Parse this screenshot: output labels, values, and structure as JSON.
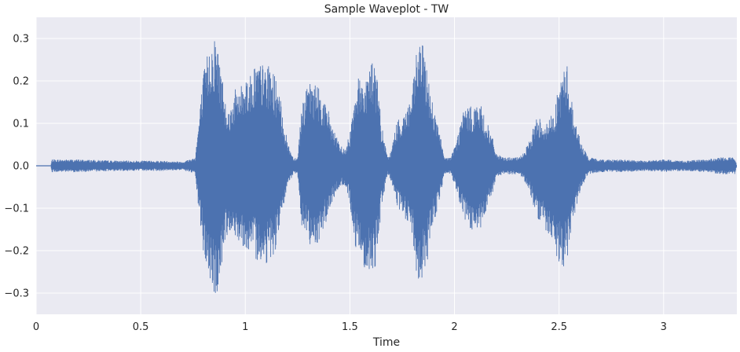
{
  "chart_data": {
    "type": "area",
    "title": "Sample Waveplot - TW",
    "xlabel": "Time",
    "ylabel": "",
    "xlim": [
      0,
      3.35
    ],
    "ylim": [
      -0.35,
      0.35
    ],
    "xticks": [
      0,
      0.5,
      1,
      1.5,
      2,
      2.5,
      3
    ],
    "xtick_labels": [
      "0",
      "0.5",
      "1",
      "1.5",
      "2",
      "2.5",
      "3"
    ],
    "yticks": [
      -0.3,
      -0.2,
      -0.1,
      0.0,
      0.1,
      0.2,
      0.3
    ],
    "ytick_labels": [
      "−0.3",
      "−0.2",
      "−0.1",
      "0.0",
      "0.1",
      "0.2",
      "0.3"
    ],
    "grid": true,
    "colors": {
      "background": "#eaeaf2",
      "grid": "#ffffff",
      "wave": "#4c72b0"
    },
    "series": [
      {
        "x": [
          0.0,
          0.07,
          0.075,
          0.2,
          0.4,
          0.6,
          0.7,
          0.76,
          0.78,
          0.8,
          0.82,
          0.84,
          0.86,
          0.88,
          0.9,
          0.92,
          0.95,
          0.98,
          1.0,
          1.02,
          1.05,
          1.08,
          1.1,
          1.13,
          1.15,
          1.17,
          1.2,
          1.23,
          1.25,
          1.27,
          1.3,
          1.32,
          1.35,
          1.38,
          1.4,
          1.42,
          1.45,
          1.48,
          1.5,
          1.52,
          1.55,
          1.57,
          1.59,
          1.61,
          1.63,
          1.65,
          1.68,
          1.7,
          1.72,
          1.75,
          1.78,
          1.8,
          1.82,
          1.84,
          1.86,
          1.88,
          1.9,
          1.93,
          1.95,
          1.98,
          2.01,
          2.04,
          2.06,
          2.08,
          2.1,
          2.13,
          2.15,
          2.18,
          2.2,
          2.23,
          2.25,
          2.28,
          2.31,
          2.34,
          2.36,
          2.38,
          2.4,
          2.42,
          2.44,
          2.46,
          2.48,
          2.5,
          2.52,
          2.54,
          2.56,
          2.58,
          2.61,
          2.64,
          2.67,
          2.7,
          2.75,
          2.8,
          2.9,
          3.0,
          3.1,
          3.2,
          3.28,
          3.32,
          3.34,
          3.35
        ],
        "upper": [
          0.0,
          0.0,
          0.015,
          0.015,
          0.012,
          0.012,
          0.01,
          0.02,
          0.12,
          0.22,
          0.27,
          0.3,
          0.31,
          0.25,
          0.18,
          0.13,
          0.18,
          0.19,
          0.22,
          0.21,
          0.25,
          0.24,
          0.24,
          0.23,
          0.2,
          0.15,
          0.06,
          0.02,
          0.02,
          0.15,
          0.19,
          0.2,
          0.19,
          0.15,
          0.13,
          0.09,
          0.05,
          0.04,
          0.08,
          0.18,
          0.22,
          0.2,
          0.24,
          0.25,
          0.22,
          0.1,
          0.02,
          0.04,
          0.1,
          0.12,
          0.15,
          0.18,
          0.28,
          0.3,
          0.26,
          0.2,
          0.14,
          0.08,
          0.02,
          0.02,
          0.06,
          0.13,
          0.14,
          0.14,
          0.15,
          0.14,
          0.11,
          0.07,
          0.03,
          0.02,
          0.02,
          0.02,
          0.02,
          0.04,
          0.06,
          0.1,
          0.12,
          0.11,
          0.1,
          0.12,
          0.14,
          0.19,
          0.23,
          0.24,
          0.16,
          0.1,
          0.05,
          0.02,
          0.018,
          0.015,
          0.015,
          0.015,
          0.012,
          0.015,
          0.012,
          0.015,
          0.02,
          0.02,
          0.02,
          0.0
        ],
        "lower": [
          0.0,
          0.0,
          -0.015,
          -0.015,
          -0.012,
          -0.012,
          -0.01,
          -0.02,
          -0.12,
          -0.21,
          -0.26,
          -0.29,
          -0.32,
          -0.26,
          -0.2,
          -0.15,
          -0.17,
          -0.18,
          -0.2,
          -0.21,
          -0.22,
          -0.23,
          -0.23,
          -0.22,
          -0.19,
          -0.14,
          -0.05,
          -0.02,
          -0.02,
          -0.14,
          -0.18,
          -0.19,
          -0.18,
          -0.14,
          -0.12,
          -0.08,
          -0.05,
          -0.05,
          -0.09,
          -0.18,
          -0.23,
          -0.24,
          -0.25,
          -0.26,
          -0.22,
          -0.1,
          -0.02,
          -0.04,
          -0.09,
          -0.12,
          -0.14,
          -0.18,
          -0.27,
          -0.29,
          -0.25,
          -0.2,
          -0.14,
          -0.08,
          -0.02,
          -0.02,
          -0.06,
          -0.12,
          -0.14,
          -0.16,
          -0.16,
          -0.15,
          -0.12,
          -0.07,
          -0.03,
          -0.02,
          -0.02,
          -0.02,
          -0.02,
          -0.04,
          -0.06,
          -0.1,
          -0.13,
          -0.14,
          -0.16,
          -0.18,
          -0.2,
          -0.23,
          -0.24,
          -0.22,
          -0.15,
          -0.1,
          -0.05,
          -0.02,
          -0.018,
          -0.015,
          -0.015,
          -0.015,
          -0.012,
          -0.015,
          -0.012,
          -0.015,
          -0.02,
          -0.02,
          -0.02,
          0.0
        ]
      }
    ]
  }
}
